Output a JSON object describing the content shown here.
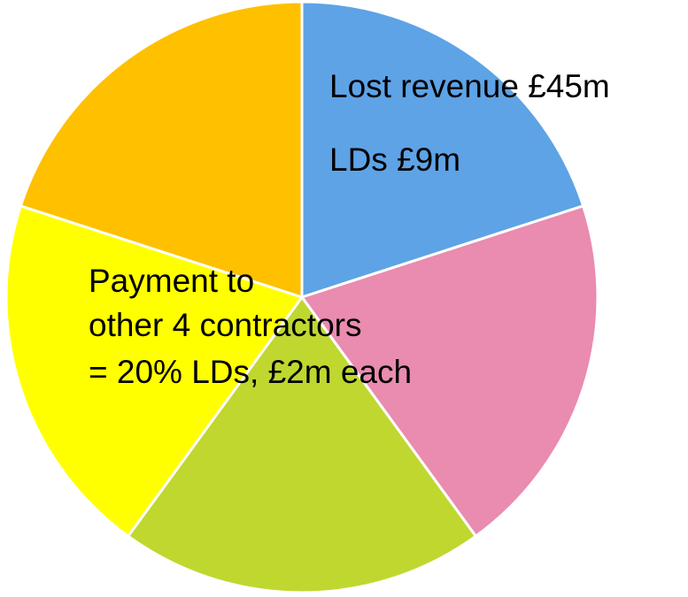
{
  "chart_data": {
    "type": "pie",
    "categories": [
      null,
      null,
      null,
      null,
      null
    ],
    "values": [
      20,
      20,
      20,
      20,
      20
    ],
    "colors": [
      "#5ea3e6",
      "#ea8bb0",
      "#c0d730",
      "#ffff00",
      "#ffc000"
    ],
    "annotations": [
      "Lost revenue £45m",
      "LDs £9m",
      "Payment to",
      "other 4 contractors",
      "= 20% LDs, £2m each"
    ]
  }
}
